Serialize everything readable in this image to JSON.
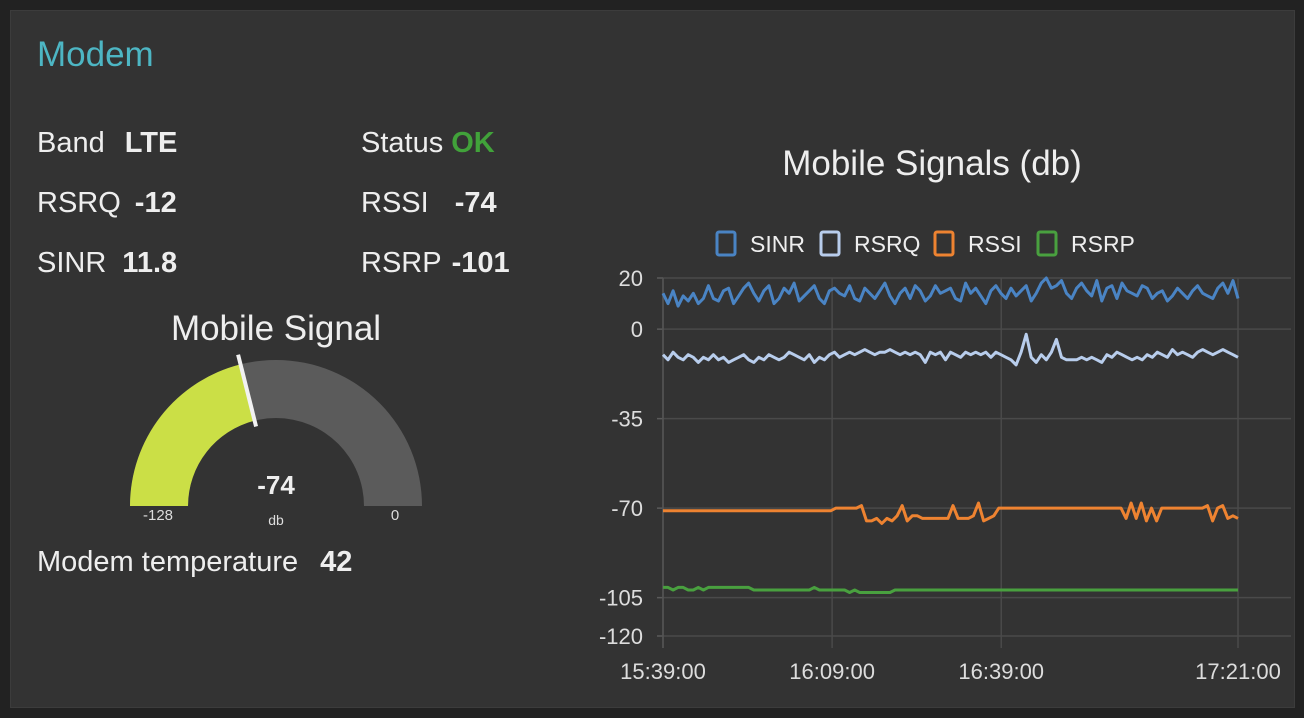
{
  "panel": {
    "title": "Modem"
  },
  "info": {
    "band": {
      "label": "Band",
      "value": "LTE"
    },
    "status": {
      "label": "Status",
      "value": "OK",
      "color": "#41a23a"
    },
    "rsrq": {
      "label": "RSRQ",
      "value": "-12"
    },
    "rssi": {
      "label": "RSSI",
      "value": "-74"
    },
    "sinr": {
      "label": "SINR",
      "value": "11.8"
    },
    "rsrp": {
      "label": "RSRP",
      "value": "-101"
    }
  },
  "gauge": {
    "title": "Mobile Signal",
    "value": -74,
    "value_label": "-74",
    "units": "db",
    "min": -128,
    "max": 0,
    "min_label": "-128",
    "max_label": "0",
    "fill_color": "#cbdf46",
    "track_color": "#5b5b5b"
  },
  "temperature": {
    "label": "Modem temperature",
    "value": "42"
  },
  "chart_data": {
    "type": "line",
    "title": "Mobile Signals (db)",
    "x_ticks": [
      "15:39:00",
      "16:09:00",
      "16:39:00",
      "17:21:00"
    ],
    "x_tick_minutes": [
      0,
      30,
      60,
      102
    ],
    "x_range_minutes": [
      0,
      102
    ],
    "y_ticks": [
      20,
      0,
      -35,
      -70,
      -105,
      -120
    ],
    "ylim": [
      -120,
      20
    ],
    "grid": true,
    "legend_position": "top",
    "series": [
      {
        "name": "SINR",
        "color": "#4a84c4",
        "values": [
          14,
          10,
          15,
          9,
          13,
          11,
          14,
          10,
          12,
          17,
          12,
          11,
          15,
          16,
          10,
          13,
          16,
          18,
          14,
          11,
          15,
          17,
          10,
          12,
          16,
          14,
          18,
          11,
          13,
          15,
          17,
          12,
          10,
          15,
          16,
          14,
          13,
          17,
          12,
          11,
          16,
          14,
          12,
          15,
          18,
          13,
          10,
          14,
          16,
          12,
          17,
          15,
          11,
          13,
          17,
          14,
          15,
          16,
          12,
          11,
          18,
          14,
          16,
          13,
          10,
          15,
          17,
          14,
          12,
          16,
          13,
          15,
          17,
          11,
          14,
          18,
          20,
          16,
          17,
          19,
          14,
          12,
          16,
          18,
          15,
          13,
          19,
          11,
          16,
          17,
          12,
          18,
          15,
          14,
          13,
          17,
          16,
          12,
          14,
          15,
          11,
          13,
          16,
          14,
          12,
          15,
          17,
          14,
          13,
          12,
          16,
          18,
          14,
          19,
          12
        ]
      },
      {
        "name": "RSRQ",
        "color": "#b8cdec",
        "values": [
          -10,
          -12,
          -9,
          -11,
          -12,
          -10,
          -11,
          -13,
          -11,
          -12,
          -10,
          -12,
          -11,
          -13,
          -12,
          -11,
          -10,
          -12,
          -13,
          -11,
          -12,
          -10,
          -11,
          -12,
          -11,
          -9,
          -10,
          -11,
          -12,
          -10,
          -13,
          -11,
          -12,
          -10,
          -9,
          -11,
          -10,
          -9,
          -10,
          -9,
          -8,
          -9,
          -10,
          -9,
          -9,
          -8,
          -9,
          -10,
          -9,
          -10,
          -9,
          -10,
          -13,
          -9,
          -10,
          -9,
          -12,
          -9,
          -10,
          -11,
          -9,
          -10,
          -9,
          -10,
          -9,
          -11,
          -9,
          -10,
          -11,
          -12,
          -14,
          -9,
          -2,
          -11,
          -13,
          -10,
          -12,
          -9,
          -4,
          -11,
          -12,
          -12,
          -12,
          -11,
          -12,
          -11,
          -12,
          -13,
          -10,
          -11,
          -9,
          -10,
          -11,
          -12,
          -11,
          -12,
          -10,
          -11,
          -9,
          -10,
          -11,
          -8,
          -10,
          -9,
          -10,
          -11,
          -9,
          -8,
          -9,
          -10,
          -9,
          -8,
          -9,
          -10,
          -11
        ]
      },
      {
        "name": "RSSI",
        "color": "#ee8331",
        "values": [
          -71,
          -71,
          -71,
          -71,
          -71,
          -71,
          -71,
          -71,
          -71,
          -71,
          -71,
          -71,
          -71,
          -71,
          -71,
          -71,
          -71,
          -71,
          -71,
          -71,
          -71,
          -71,
          -71,
          -71,
          -71,
          -71,
          -71,
          -71,
          -71,
          -71,
          -71,
          -71,
          -71,
          -71,
          -70,
          -70,
          -70,
          -70,
          -70,
          -69,
          -75,
          -75,
          -74,
          -76,
          -74,
          -75,
          -73,
          -69,
          -75,
          -73,
          -73,
          -74,
          -74,
          -74,
          -74,
          -74,
          -74,
          -69,
          -74,
          -74,
          -74,
          -73,
          -68,
          -75,
          -74,
          -73,
          -70,
          -70,
          -70,
          -70,
          -70,
          -70,
          -70,
          -70,
          -70,
          -70,
          -70,
          -70,
          -70,
          -70,
          -70,
          -70,
          -70,
          -70,
          -70,
          -70,
          -70,
          -70,
          -70,
          -70,
          -70,
          -74,
          -68,
          -74,
          -68,
          -75,
          -70,
          -75,
          -70,
          -70,
          -70,
          -70,
          -70,
          -70,
          -70,
          -70,
          -70,
          -69,
          -75,
          -70,
          -69,
          -74,
          -73,
          -74
        ]
      },
      {
        "name": "RSRP",
        "color": "#49a03f",
        "values": [
          -101,
          -101,
          -102,
          -101,
          -101,
          -102,
          -102,
          -101,
          -102,
          -101,
          -101,
          -101,
          -101,
          -101,
          -101,
          -101,
          -101,
          -101,
          -102,
          -102,
          -102,
          -102,
          -102,
          -102,
          -102,
          -102,
          -102,
          -102,
          -102,
          -102,
          -101,
          -102,
          -102,
          -102,
          -102,
          -102,
          -102,
          -103,
          -102,
          -103,
          -103,
          -103,
          -103,
          -103,
          -103,
          -103,
          -102,
          -102,
          -102,
          -102,
          -102,
          -102,
          -102,
          -102,
          -102,
          -102,
          -102,
          -102,
          -102,
          -102,
          -102,
          -102,
          -102,
          -102,
          -102,
          -102,
          -102,
          -102,
          -102,
          -102,
          -102,
          -102,
          -102,
          -102,
          -102,
          -102,
          -102,
          -102,
          -102,
          -102,
          -102,
          -102,
          -102,
          -102,
          -102,
          -102,
          -102,
          -102,
          -102,
          -102,
          -102,
          -102,
          -102,
          -102,
          -102,
          -102,
          -102,
          -102,
          -102,
          -102,
          -102,
          -102,
          -102,
          -102,
          -102,
          -102,
          -102,
          -102,
          -102,
          -102,
          -102,
          -102,
          -102,
          -102,
          -102
        ]
      }
    ]
  }
}
